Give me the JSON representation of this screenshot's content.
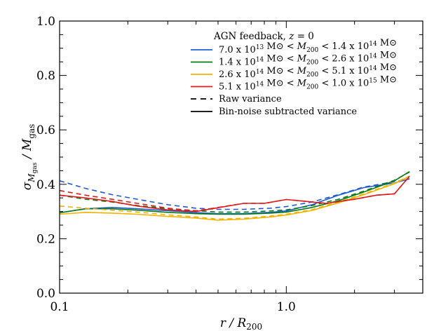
{
  "chart_data": {
    "type": "line",
    "title": "",
    "xlabel": "r / R200",
    "ylabel": "σ_Mgas / Mgas",
    "xscale": "log",
    "xlim": [
      0.1,
      4.0
    ],
    "ylim": [
      0.0,
      1.0
    ],
    "xticks": [
      {
        "value": 0.1,
        "label": "0.1"
      },
      {
        "value": 1.0,
        "label": "1.0"
      }
    ],
    "yticks": [
      {
        "value": 0.0,
        "label": "0.0"
      },
      {
        "value": 0.2,
        "label": "0.2"
      },
      {
        "value": 0.4,
        "label": "0.4"
      },
      {
        "value": 0.6,
        "label": "0.6"
      },
      {
        "value": 0.8,
        "label": "0.8"
      },
      {
        "value": 1.0,
        "label": "1.0"
      }
    ],
    "grid": false,
    "legend_placement": "top-right",
    "legend_title": "AGN feedback, z = 0",
    "style_legend": [
      {
        "style": "dashed",
        "label": "Raw variance"
      },
      {
        "style": "solid",
        "label": "Bin-noise subtracted variance"
      }
    ],
    "series": [
      {
        "name": "7.0 x 10^13 M⊙ < M200 < 1.4 x 10^14 M⊙",
        "color": "#1f5bd6",
        "raw": {
          "x": [
            0.1,
            0.13,
            0.17,
            0.22,
            0.3,
            0.4,
            0.5,
            0.65,
            0.85,
            1.0,
            1.3,
            1.7,
            2.2,
            3.0,
            3.5
          ],
          "y": [
            0.413,
            0.385,
            0.362,
            0.345,
            0.325,
            0.312,
            0.308,
            0.308,
            0.312,
            0.318,
            0.335,
            0.362,
            0.39,
            0.41,
            0.42
          ]
        },
        "subtracted": {
          "x": [
            0.1,
            0.13,
            0.17,
            0.22,
            0.3,
            0.4,
            0.5,
            0.65,
            0.85,
            1.0,
            1.3,
            1.7,
            2.2,
            3.0,
            3.5
          ],
          "y": [
            0.295,
            0.31,
            0.315,
            0.31,
            0.303,
            0.296,
            0.292,
            0.292,
            0.297,
            0.302,
            0.325,
            0.36,
            0.388,
            0.405,
            0.42
          ]
        }
      },
      {
        "name": "1.4 x 10^14 M⊙ < M200 < 2.6 x 10^14 M⊙",
        "color": "#0a7a16",
        "raw": {
          "x": [
            0.1,
            0.13,
            0.17,
            0.22,
            0.3,
            0.4,
            0.5,
            0.65,
            0.85,
            1.0,
            1.3,
            1.7,
            2.2,
            3.0,
            3.5
          ],
          "y": [
            0.36,
            0.345,
            0.335,
            0.322,
            0.31,
            0.303,
            0.298,
            0.298,
            0.302,
            0.306,
            0.322,
            0.345,
            0.375,
            0.415,
            0.445
          ]
        },
        "subtracted": {
          "x": [
            0.1,
            0.13,
            0.17,
            0.22,
            0.3,
            0.4,
            0.5,
            0.65,
            0.85,
            1.0,
            1.3,
            1.7,
            2.2,
            3.0,
            3.5
          ],
          "y": [
            0.295,
            0.31,
            0.31,
            0.305,
            0.297,
            0.292,
            0.29,
            0.29,
            0.294,
            0.298,
            0.315,
            0.34,
            0.372,
            0.413,
            0.447
          ]
        }
      },
      {
        "name": "2.6 x 10^14 M⊙ < M200 < 5.1 x 10^14 M⊙",
        "color": "#f2b200",
        "raw": {
          "x": [
            0.1,
            0.13,
            0.17,
            0.22,
            0.3,
            0.4,
            0.5,
            0.65,
            0.85,
            1.0,
            1.3,
            1.7,
            2.2,
            3.0,
            3.5
          ],
          "y": [
            0.32,
            0.312,
            0.305,
            0.298,
            0.288,
            0.28,
            0.272,
            0.275,
            0.283,
            0.29,
            0.307,
            0.335,
            0.365,
            0.405,
            0.43
          ]
        },
        "subtracted": {
          "x": [
            0.1,
            0.13,
            0.17,
            0.22,
            0.3,
            0.4,
            0.5,
            0.65,
            0.85,
            1.0,
            1.3,
            1.7,
            2.2,
            3.0,
            3.5
          ],
          "y": [
            0.29,
            0.297,
            0.294,
            0.29,
            0.282,
            0.276,
            0.268,
            0.272,
            0.28,
            0.287,
            0.304,
            0.332,
            0.362,
            0.402,
            0.43
          ]
        }
      },
      {
        "name": "5.1 x 10^14 M⊙ < M200 < 1.0 x 10^15 M⊙",
        "color": "#e11b1b",
        "raw": {
          "x": [
            0.1,
            0.13,
            0.17,
            0.22,
            0.3,
            0.4,
            0.5,
            0.65,
            0.8,
            1.0,
            1.2,
            1.5,
            2.0,
            2.5,
            3.0,
            3.5
          ],
          "y": [
            0.377,
            0.36,
            0.345,
            0.33,
            0.312,
            0.302,
            0.315,
            0.33,
            0.33,
            0.344,
            0.338,
            0.33,
            0.345,
            0.36,
            0.365,
            0.43
          ]
        },
        "subtracted": {
          "x": [
            0.1,
            0.13,
            0.17,
            0.22,
            0.3,
            0.4,
            0.5,
            0.65,
            0.8,
            1.0,
            1.2,
            1.5,
            2.0,
            2.5,
            3.0,
            3.5
          ],
          "y": [
            0.36,
            0.35,
            0.337,
            0.32,
            0.306,
            0.3,
            0.314,
            0.33,
            0.33,
            0.344,
            0.338,
            0.33,
            0.345,
            0.36,
            0.365,
            0.43
          ]
        }
      }
    ]
  }
}
